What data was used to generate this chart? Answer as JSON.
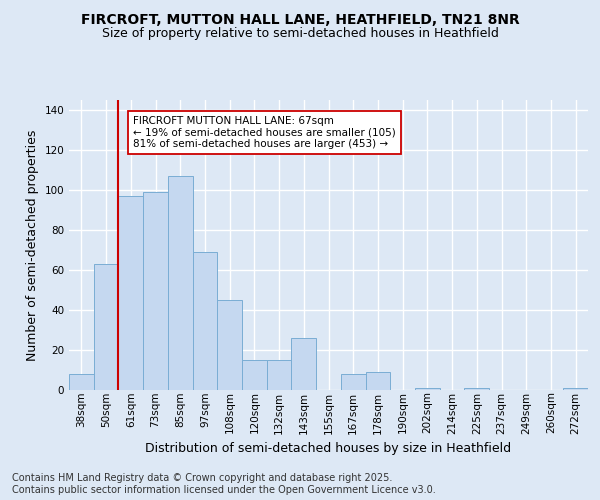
{
  "title1": "FIRCROFT, MUTTON HALL LANE, HEATHFIELD, TN21 8NR",
  "title2": "Size of property relative to semi-detached houses in Heathfield",
  "xlabel": "Distribution of semi-detached houses by size in Heathfield",
  "ylabel": "Number of semi-detached properties",
  "bin_labels": [
    "38sqm",
    "50sqm",
    "61sqm",
    "73sqm",
    "85sqm",
    "97sqm",
    "108sqm",
    "120sqm",
    "132sqm",
    "143sqm",
    "155sqm",
    "167sqm",
    "178sqm",
    "190sqm",
    "202sqm",
    "214sqm",
    "225sqm",
    "237sqm",
    "249sqm",
    "260sqm",
    "272sqm"
  ],
  "bar_values": [
    8,
    63,
    97,
    99,
    107,
    69,
    45,
    15,
    15,
    26,
    0,
    8,
    9,
    0,
    1,
    0,
    1,
    0,
    0,
    0,
    1
  ],
  "bar_color": "#c5d8f0",
  "bar_edge_color": "#7aadd4",
  "vline_x": 1.5,
  "vline_color": "#cc0000",
  "annotation_line1": "FIRCROFT MUTTON HALL LANE: 67sqm",
  "annotation_line2": "← 19% of semi-detached houses are smaller (105)",
  "annotation_line3": "81% of semi-detached houses are larger (453) →",
  "annotation_box_color": "#ffffff",
  "annotation_box_edge": "#cc0000",
  "ylim": [
    0,
    145
  ],
  "yticks": [
    0,
    20,
    40,
    60,
    80,
    100,
    120,
    140
  ],
  "footnote": "Contains HM Land Registry data © Crown copyright and database right 2025.\nContains public sector information licensed under the Open Government Licence v3.0.",
  "bg_color": "#dde8f5",
  "plot_bg_color": "#dde8f5",
  "grid_color": "#ffffff",
  "title_fontsize": 10,
  "subtitle_fontsize": 9,
  "axis_label_fontsize": 9,
  "tick_fontsize": 7.5,
  "footnote_fontsize": 7,
  "annotation_fontsize": 7.5
}
